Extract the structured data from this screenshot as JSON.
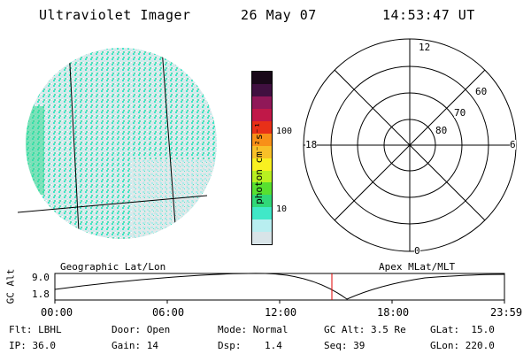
{
  "header": {
    "instrument": "Ultraviolet Imager",
    "date": "26 May 07",
    "time": "14:53:47 UT"
  },
  "colorbar": {
    "unit_text": "photon cm⁻²s⁻¹",
    "tick_100": "100",
    "tick_10": "10",
    "colors": [
      "#d8e4e8",
      "#b8eef0",
      "#40e8c8",
      "#30d878",
      "#58e030",
      "#b8f020",
      "#f8f020",
      "#f8c028",
      "#f89018",
      "#e83018",
      "#c01848",
      "#901858",
      "#401040",
      "#180818"
    ]
  },
  "polar": {
    "label_12": "12",
    "label_6": "6",
    "label_18": "18",
    "label_0": "0",
    "lat_60": "60",
    "lat_70": "70",
    "lat_80": "80"
  },
  "orbit": {
    "left_title": "Geographic Lat/Lon",
    "right_title": "Apex MLat/MLT",
    "axis_label": "GC Alt",
    "y_top": "9.0",
    "y_bottom": "1.8",
    "x_ticks": [
      "00:00",
      "06:00",
      "12:00",
      "18:00",
      "23:59"
    ],
    "marker_color": "#e00000"
  },
  "info": {
    "flt": "Flt: LBHL",
    "ip": "IP: 36.0",
    "door": "Door: Open",
    "gain": "Gain: 14",
    "mode": "Mode: Normal",
    "dsp": "Dsp:    1.4",
    "gcalt": "GC Alt: 3.5 Re",
    "seq": "Seq: 39",
    "glat": "GLat:  15.0",
    "glon": "GLon: 220.0"
  }
}
